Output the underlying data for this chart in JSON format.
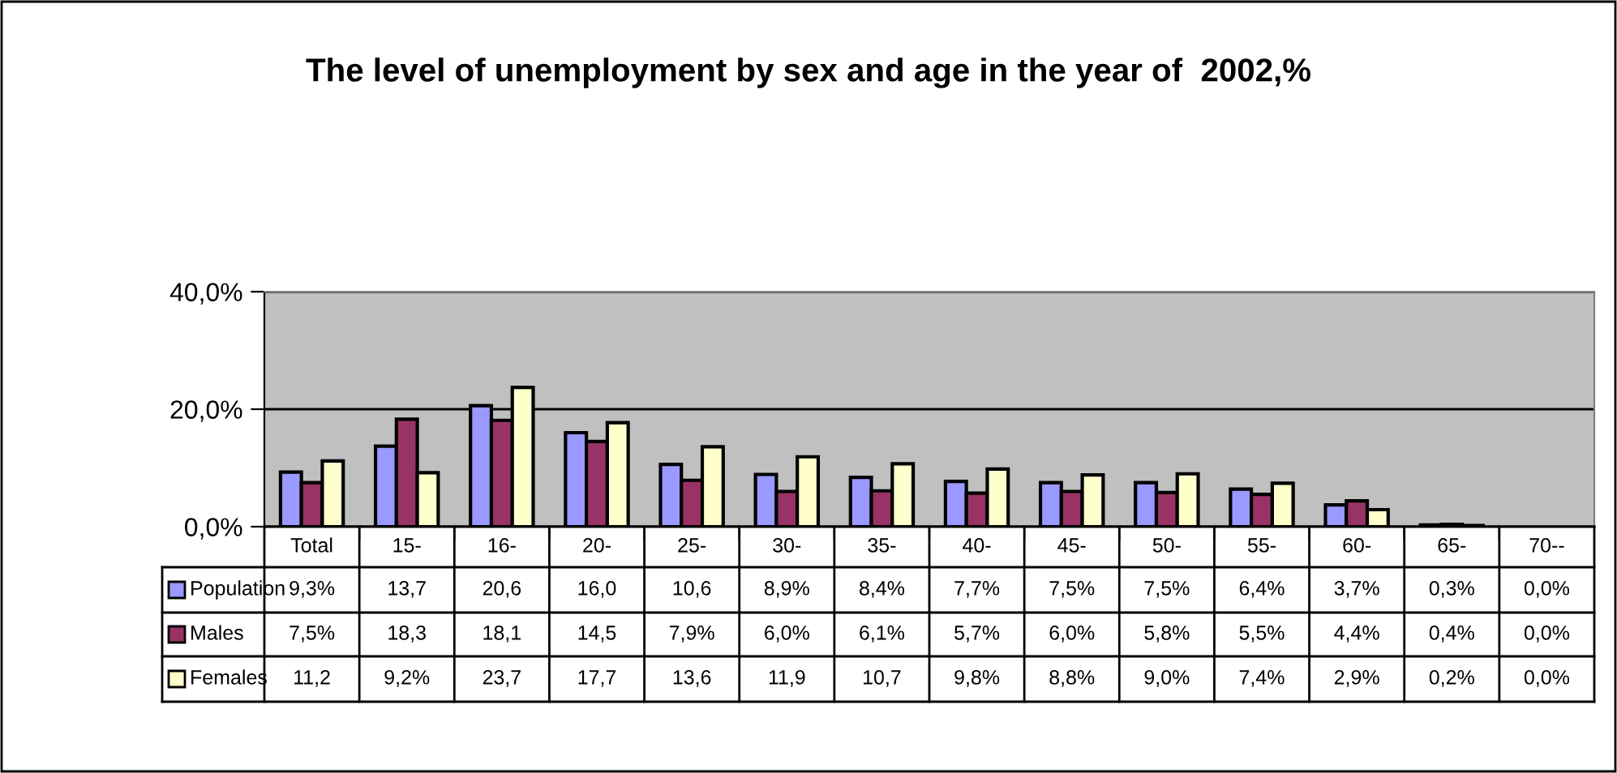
{
  "chart_data": {
    "type": "bar",
    "title": "The level of unemployment by sex and age in the year of  2002,%",
    "categories": [
      "Total",
      "15-",
      "16-",
      "20-",
      "25-",
      "30-",
      "35-",
      "40-",
      "45-",
      "50-",
      "55-",
      "60-",
      "65-",
      "70--"
    ],
    "series": [
      {
        "name": "Population",
        "color": "#9999ff",
        "values": [
          9.3,
          13.7,
          20.6,
          16.0,
          10.6,
          8.9,
          8.4,
          7.7,
          7.5,
          7.5,
          6.4,
          3.7,
          0.3,
          0.0
        ],
        "value_labels": [
          "9,3%",
          "13,7",
          "20,6",
          "16,0",
          "10,6",
          "8,9%",
          "8,4%",
          "7,7%",
          "7,5%",
          "7,5%",
          "6,4%",
          "3,7%",
          "0,3%",
          "0,0%"
        ]
      },
      {
        "name": "Males",
        "color": "#993366",
        "values": [
          7.5,
          18.3,
          18.1,
          14.5,
          7.9,
          6.0,
          6.1,
          5.7,
          6.0,
          5.8,
          5.5,
          4.4,
          0.4,
          0.0
        ],
        "value_labels": [
          "7,5%",
          "18,3",
          "18,1",
          "14,5",
          "7,9%",
          "6,0%",
          "6,1%",
          "5,7%",
          "6,0%",
          "5,8%",
          "5,5%",
          "4,4%",
          "0,4%",
          "0,0%"
        ]
      },
      {
        "name": "Females",
        "color": "#ffffcc",
        "values": [
          11.2,
          9.2,
          23.7,
          17.7,
          13.6,
          11.9,
          10.7,
          9.8,
          8.8,
          9.0,
          7.4,
          2.9,
          0.2,
          0.0
        ],
        "value_labels": [
          "11,2",
          "9,2%",
          "23,7",
          "17,7",
          "13,6",
          "11,9",
          "10,7",
          "9,8%",
          "8,8%",
          "9,0%",
          "7,4%",
          "2,9%",
          "0,2%",
          "0,0%"
        ]
      }
    ],
    "ylim": [
      0,
      40
    ],
    "yticks": [
      {
        "value": 0,
        "label": "0,0%"
      },
      {
        "value": 20,
        "label": "20,0%"
      },
      {
        "value": 40,
        "label": "40,0%"
      }
    ],
    "grid": "y",
    "legend": "bottom left"
  }
}
